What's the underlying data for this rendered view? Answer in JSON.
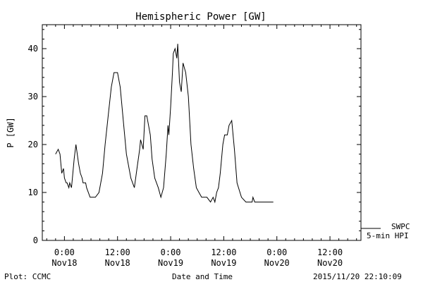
{
  "chart_data": {
    "type": "line",
    "title": "Hemispheric Power [GW]",
    "ylabel": "P [GW]",
    "xlabel": "Date and Time",
    "ylim": [
      0,
      45
    ],
    "yticks": [
      0,
      10,
      20,
      30,
      40
    ],
    "xlim_hours": [
      -2.5,
      33.5
    ],
    "xticks": [
      {
        "hour": 0,
        "time": "0:00",
        "date": "Nov18"
      },
      {
        "hour": 6,
        "time": "12:00",
        "date": "Nov18"
      },
      {
        "hour": 12,
        "time": "0:00",
        "date": "Nov19"
      },
      {
        "hour": 18,
        "time": "12:00",
        "date": "Nov19"
      },
      {
        "hour": 24,
        "time": "0:00",
        "date": "Nov20"
      },
      {
        "hour": 30,
        "time": "12:00",
        "date": "Nov20"
      }
    ],
    "series": [
      {
        "name": "SWPC",
        "color": "#000000",
        "x": [
          -1.0,
          -0.7,
          -0.5,
          -0.3,
          -0.1,
          0.0,
          0.2,
          0.3,
          0.5,
          0.6,
          0.8,
          0.9,
          1.1,
          1.3,
          1.6,
          1.8,
          2.0,
          2.1,
          2.4,
          2.5,
          2.9,
          3.1,
          3.5,
          3.9,
          4.3,
          4.6,
          5.0,
          5.3,
          5.6,
          6.0,
          6.3,
          6.7,
          7.0,
          7.5,
          7.9,
          8.2,
          8.5,
          8.6,
          8.9,
          9.1,
          9.3,
          9.5,
          9.7,
          9.9,
          10.2,
          10.6,
          10.9,
          11.2,
          11.5,
          11.7,
          11.8,
          12.0,
          12.2,
          12.3,
          12.5,
          12.7,
          12.8,
          13.0,
          13.2,
          13.4,
          13.7,
          14.0,
          14.3,
          14.6,
          14.9,
          15.2,
          15.5,
          15.7,
          15.9,
          16.1,
          16.5,
          16.8,
          17.0,
          17.2,
          17.4,
          17.6,
          17.9,
          18.1,
          18.4,
          18.6,
          18.9,
          19.2,
          19.5,
          20.0,
          20.5,
          21.0,
          21.2,
          21.3,
          21.5,
          21.7,
          21.8,
          22.5,
          23.0,
          23.6
        ],
        "y": [
          18,
          19,
          18,
          14,
          15,
          13,
          12,
          12,
          11,
          12,
          11,
          13,
          17,
          20,
          16,
          14,
          13,
          12,
          12,
          11,
          9,
          9,
          9,
          10,
          14,
          20,
          27,
          32,
          35,
          35,
          32,
          24,
          18,
          13,
          11,
          15,
          19,
          21,
          19,
          26,
          26,
          24,
          22,
          17,
          13,
          11,
          9,
          11,
          18,
          24,
          22,
          28,
          35,
          39,
          40,
          38,
          41,
          33,
          31,
          37,
          35,
          30,
          20,
          15,
          11,
          10,
          9,
          9,
          9,
          9,
          8,
          9,
          8,
          10,
          11,
          14,
          20,
          22,
          22,
          24,
          25,
          19,
          12,
          9,
          8,
          8,
          8,
          9,
          8,
          8,
          8,
          8,
          8,
          8
        ]
      }
    ],
    "annotations": [
      "SWPC",
      "5-min HPI"
    ],
    "footer": {
      "left": "Plot: CCMC",
      "right": "2015/11/20 22:10:09"
    }
  }
}
